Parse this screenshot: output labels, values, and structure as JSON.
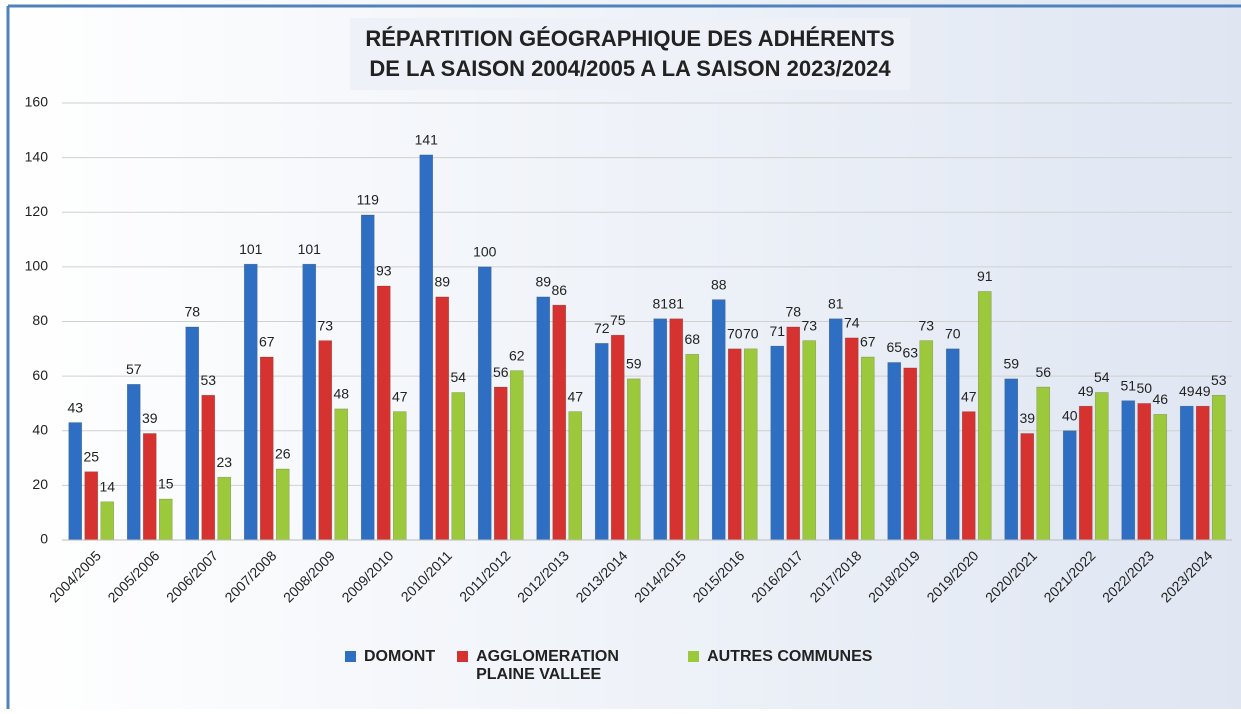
{
  "chart_data": {
    "type": "bar",
    "title": [
      "RÉPARTITION GÉOGRAPHIQUE DES ADHÉRENTS",
      "DE LA SAISON 2004/2005 A LA SAISON 2023/2024"
    ],
    "categories": [
      "2004/2005",
      "2005/2006",
      "2006/2007",
      "2007/2008",
      "2008/2009",
      "2009/2010",
      "2010/2011",
      "2011/2012",
      "2012/2013",
      "2013/2014",
      "2014/2015",
      "2015/2016",
      "2016/2017",
      "2017/2018",
      "2018/2019",
      "2019/2020",
      "2020/2021",
      "2021/2022",
      "2022/2023",
      "2023/2024"
    ],
    "series": [
      {
        "name": "DOMONT",
        "color": "#2e6fc4",
        "values": [
          43,
          57,
          78,
          101,
          101,
          119,
          141,
          100,
          89,
          72,
          81,
          88,
          71,
          81,
          65,
          70,
          59,
          40,
          51,
          49
        ]
      },
      {
        "name": "AGGLOMERATION PLAINE VALLEE",
        "color": "#d63330",
        "values": [
          25,
          39,
          53,
          67,
          73,
          93,
          89,
          56,
          86,
          75,
          81,
          70,
          78,
          74,
          63,
          47,
          39,
          49,
          50,
          49
        ]
      },
      {
        "name": "AUTRES COMMUNES",
        "color": "#9cc93b",
        "values": [
          14,
          15,
          23,
          26,
          48,
          47,
          54,
          62,
          47,
          59,
          68,
          70,
          73,
          67,
          73,
          91,
          56,
          54,
          46,
          53
        ]
      }
    ],
    "ylim": [
      0,
      160
    ],
    "yticks": [
      0,
      20,
      40,
      60,
      80,
      100,
      120,
      140,
      160
    ],
    "grid": true
  }
}
